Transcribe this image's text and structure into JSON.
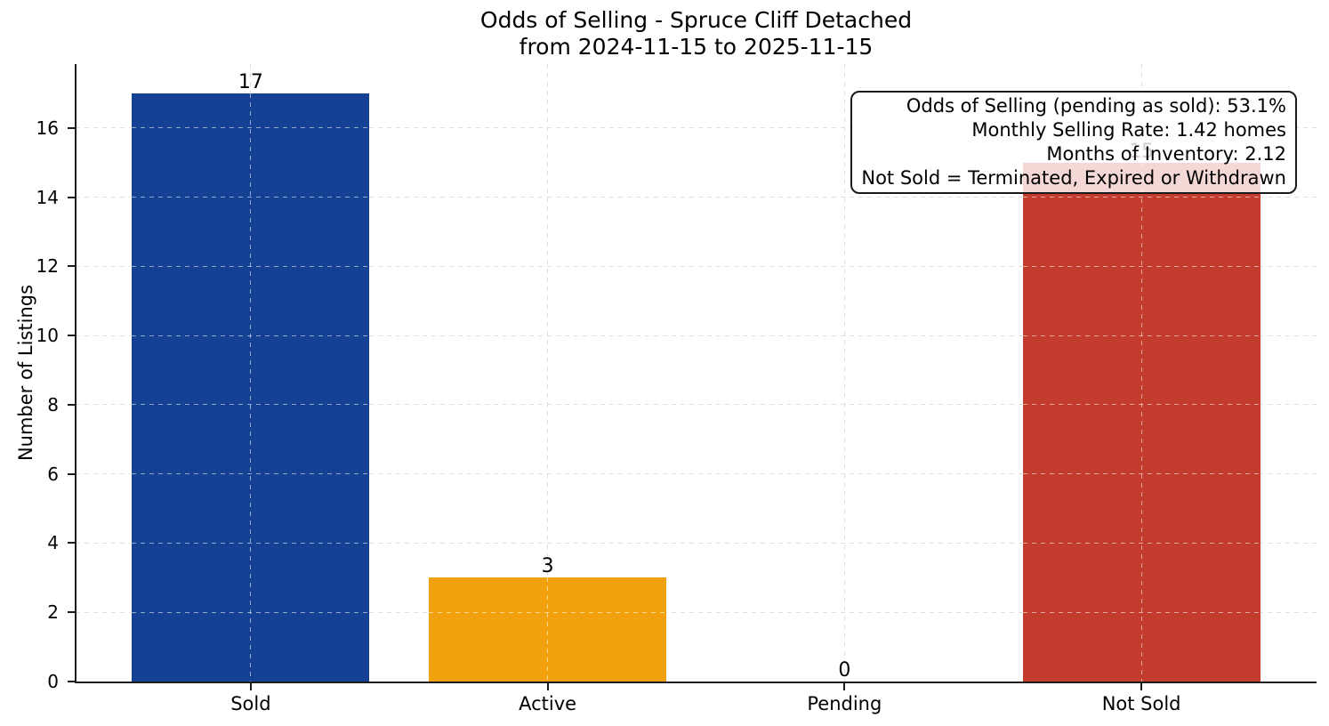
{
  "chart_data": {
    "type": "bar",
    "title": "Odds of Selling - Spruce Cliff Detached",
    "subtitle": "from 2024-11-15 to 2025-11-15",
    "categories": [
      "Sold",
      "Active",
      "Pending",
      "Not Sold"
    ],
    "values": [
      17,
      3,
      0,
      15
    ],
    "value_labels": [
      "17",
      "3",
      "0",
      "15"
    ],
    "bar_colors": [
      "#154194",
      "#F2A10E",
      "#999999",
      "#C43C2D"
    ],
    "xlabel": "",
    "ylabel": "Number of Listings",
    "yticks": [
      0,
      2,
      4,
      6,
      8,
      10,
      12,
      14,
      16
    ],
    "ylim": [
      0,
      17.85
    ],
    "grid": "dashed, horizontal and vertical, drawn over bars",
    "legend_position": "none",
    "annotation": {
      "position": "top-right",
      "lines": [
        "Odds of Selling (pending as sold): 53.1%",
        "Monthly Selling Rate: 1.42 homes",
        "Months of Inventory: 2.12",
        "Not Sold = Terminated, Expired or Withdrawn"
      ]
    }
  }
}
